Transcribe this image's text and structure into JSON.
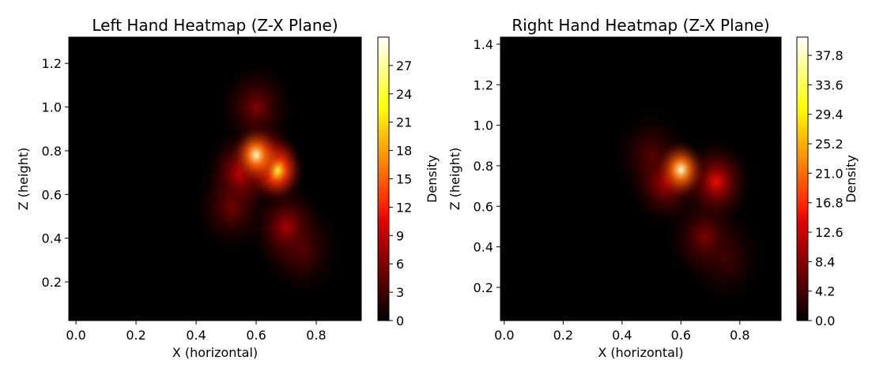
{
  "chart_data": [
    {
      "type": "heatmap",
      "title": "Left Hand Heatmap (Z-X Plane)",
      "x_label": "X (horizontal)",
      "y_label": "Z (height)",
      "colorbar_label": "Density",
      "colormap": "hot",
      "x": [
        0.6,
        0.67,
        0.64,
        0.55,
        0.7,
        0.6,
        0.75,
        0.52
      ],
      "y": [
        0.78,
        0.71,
        0.75,
        0.7,
        0.45,
        1.0,
        0.35,
        0.55
      ],
      "values": [
        28,
        24,
        18,
        10,
        8,
        6,
        5,
        6
      ],
      "xlim": [
        -0.024,
        0.95
      ],
      "ylim": [
        0.023,
        1.32
      ],
      "clim": [
        0,
        30
      ],
      "xticks": [
        {
          "value": 0,
          "label": "0.0"
        },
        0.2,
        0.4,
        0.6,
        0.8
      ],
      "yticks": [
        0.2,
        0.4,
        0.6,
        0.8,
        {
          "value": 1,
          "label": "1.0"
        },
        1.2
      ],
      "cticks": [
        0,
        3,
        6,
        9,
        12,
        15,
        18,
        21,
        24,
        27
      ]
    },
    {
      "type": "heatmap",
      "title": "Right Hand Heatmap (Z-X Plane)",
      "x_label": "X (horizontal)",
      "y_label": "Z (height)",
      "colorbar_label": "Density",
      "colormap": "hot",
      "x": [
        0.6,
        0.72,
        0.55,
        0.68,
        0.5,
        0.75
      ],
      "y": [
        0.78,
        0.72,
        0.72,
        0.45,
        0.85,
        0.35
      ],
      "values": [
        38,
        15,
        12,
        8,
        6,
        5
      ],
      "xlim": [
        -0.013,
        0.94
      ],
      "ylim": [
        0.036,
        1.435
      ],
      "clim": [
        0,
        40.4
      ],
      "xticks": [
        {
          "value": 0,
          "label": "0.0"
        },
        0.2,
        0.4,
        0.6,
        0.8
      ],
      "yticks": [
        0.2,
        0.4,
        0.6,
        0.8,
        {
          "value": 1,
          "label": "1.0"
        },
        1.2,
        1.4
      ],
      "cticks": [
        {
          "value": 0,
          "label": "0.0"
        },
        4.2,
        8.4,
        12.6,
        16.8,
        {
          "value": 21,
          "label": "21.0"
        },
        25.2,
        29.4,
        33.6,
        37.8
      ]
    }
  ]
}
